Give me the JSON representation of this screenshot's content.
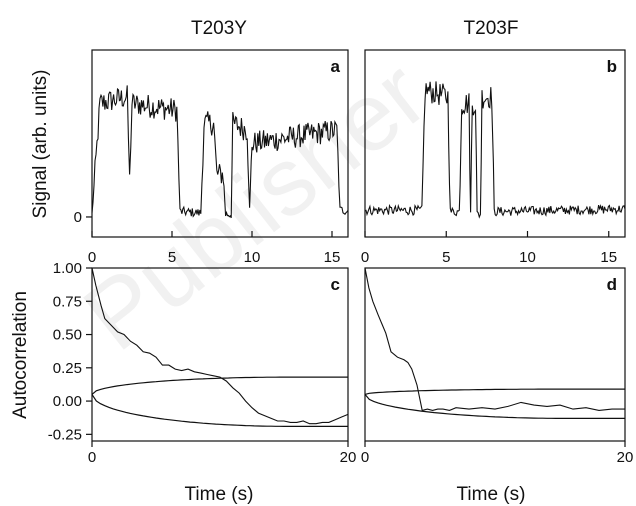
{
  "watermark": "Publisher",
  "chart_data": [
    {
      "id": "a",
      "type": "line",
      "column_title": "T203Y",
      "panel_letter": "a",
      "ylabel": "Signal (arb. units)",
      "xlabel": "",
      "xlim": [
        0,
        16
      ],
      "ylim": [
        -0.15,
        1.25
      ],
      "xticks": [
        0,
        5,
        10,
        15
      ],
      "yticks": [
        0
      ],
      "ytick_labels": [
        "0"
      ],
      "series": [
        {
          "values": []
        }
      ],
      "segments": [
        [
          0,
          0.02
        ],
        [
          0.5,
          0.85
        ],
        [
          2.2,
          0.9
        ],
        [
          2.35,
          0.3
        ],
        [
          2.5,
          0.85
        ],
        [
          5.3,
          0.8
        ],
        [
          5.5,
          0.04
        ],
        [
          6.8,
          0.03
        ],
        [
          7.0,
          0.7
        ],
        [
          7.6,
          0.7
        ],
        [
          7.8,
          0.32
        ],
        [
          8.2,
          0.32
        ],
        [
          8.35,
          0.02
        ],
        [
          8.7,
          0.02
        ],
        [
          8.8,
          0.7
        ],
        [
          9.7,
          0.65
        ],
        [
          9.85,
          0.05
        ],
        [
          10.0,
          0.55
        ],
        [
          15.3,
          0.65
        ],
        [
          15.5,
          0.05
        ],
        [
          16,
          0.05
        ]
      ]
    },
    {
      "id": "b",
      "type": "line",
      "column_title": "T203F",
      "panel_letter": "b",
      "ylabel": "",
      "xlabel": "",
      "xlim": [
        0,
        16
      ],
      "ylim": [
        -0.15,
        1.25
      ],
      "xticks": [
        0,
        5,
        10,
        15
      ],
      "yticks": [],
      "series": [
        {
          "values": []
        }
      ],
      "segments": [
        [
          0,
          0.05
        ],
        [
          3.5,
          0.05
        ],
        [
          3.7,
          0.95
        ],
        [
          5.1,
          0.9
        ],
        [
          5.25,
          0.04
        ],
        [
          5.8,
          0.04
        ],
        [
          5.95,
          0.85
        ],
        [
          6.4,
          0.85
        ],
        [
          6.5,
          0.02
        ],
        [
          6.6,
          0.85
        ],
        [
          6.8,
          0.85
        ],
        [
          6.9,
          0.02
        ],
        [
          7.1,
          0.02
        ],
        [
          7.2,
          0.9
        ],
        [
          7.8,
          0.9
        ],
        [
          7.95,
          0.04
        ],
        [
          16,
          0.06
        ]
      ]
    },
    {
      "id": "c",
      "type": "line",
      "panel_letter": "c",
      "ylabel": "Autocorrelation",
      "xlabel": "Time (s)",
      "xlim": [
        0,
        20
      ],
      "ylim": [
        -0.3,
        1.0
      ],
      "xticks": [
        0,
        20
      ],
      "yticks": [
        -0.25,
        0.0,
        0.25,
        0.5,
        0.75,
        1.0
      ],
      "ytick_labels": [
        "-0.25",
        "0.00",
        "0.25",
        "0.50",
        "0.75",
        "1.00"
      ],
      "series": [
        {
          "x": [
            0,
            0.3,
            0.7,
            1.0,
            1.5,
            2.0,
            2.5,
            3.0,
            3.5,
            4.0,
            4.5,
            5.0,
            5.5,
            6.0,
            6.5,
            7.0,
            7.5,
            8.0,
            8.5,
            9.0,
            9.5,
            10.0,
            10.5,
            11.0,
            11.5,
            12.0,
            12.5,
            13.0,
            13.5,
            14.0,
            14.5,
            15.0,
            15.5,
            16.0,
            16.5,
            17.0,
            17.5,
            18.0,
            18.5,
            19.0,
            19.5,
            20.0
          ],
          "values": [
            1.0,
            0.87,
            0.72,
            0.62,
            0.57,
            0.52,
            0.5,
            0.45,
            0.42,
            0.37,
            0.36,
            0.33,
            0.27,
            0.27,
            0.24,
            0.23,
            0.24,
            0.22,
            0.21,
            0.2,
            0.19,
            0.18,
            0.15,
            0.1,
            0.06,
            0.0,
            -0.05,
            -0.09,
            -0.11,
            -0.13,
            -0.15,
            -0.15,
            -0.16,
            -0.16,
            -0.15,
            -0.17,
            -0.17,
            -0.16,
            -0.16,
            -0.14,
            -0.12,
            -0.1
          ]
        }
      ],
      "confidence_band": {
        "upper": 0.18,
        "lower": -0.19
      }
    },
    {
      "id": "d",
      "type": "line",
      "panel_letter": "d",
      "ylabel": "",
      "xlabel": "Time (s)",
      "xlim": [
        0,
        20
      ],
      "ylim": [
        -0.3,
        1.0
      ],
      "xticks": [
        0,
        20
      ],
      "yticks": [],
      "series": [
        {
          "x": [
            0,
            0.3,
            0.6,
            1.0,
            1.3,
            1.6,
            2.0,
            2.5,
            3.0,
            3.3,
            3.6,
            4.0,
            4.4,
            4.8,
            5.2,
            5.6,
            6.0,
            6.5,
            7.0,
            8.0,
            9.0,
            10.0,
            11.0,
            12.0,
            13.0,
            14.0,
            15.0,
            16.0,
            17.0,
            18.0,
            19.0,
            20.0
          ],
          "values": [
            1.0,
            0.85,
            0.75,
            0.65,
            0.58,
            0.51,
            0.37,
            0.33,
            0.31,
            0.29,
            0.24,
            0.12,
            -0.07,
            -0.06,
            -0.07,
            -0.06,
            -0.06,
            -0.07,
            -0.05,
            -0.06,
            -0.05,
            -0.06,
            -0.04,
            -0.01,
            -0.03,
            -0.04,
            -0.03,
            -0.06,
            -0.05,
            -0.07,
            -0.06,
            -0.06
          ]
        }
      ],
      "confidence_band": {
        "upper": 0.09,
        "lower": -0.13
      }
    }
  ]
}
